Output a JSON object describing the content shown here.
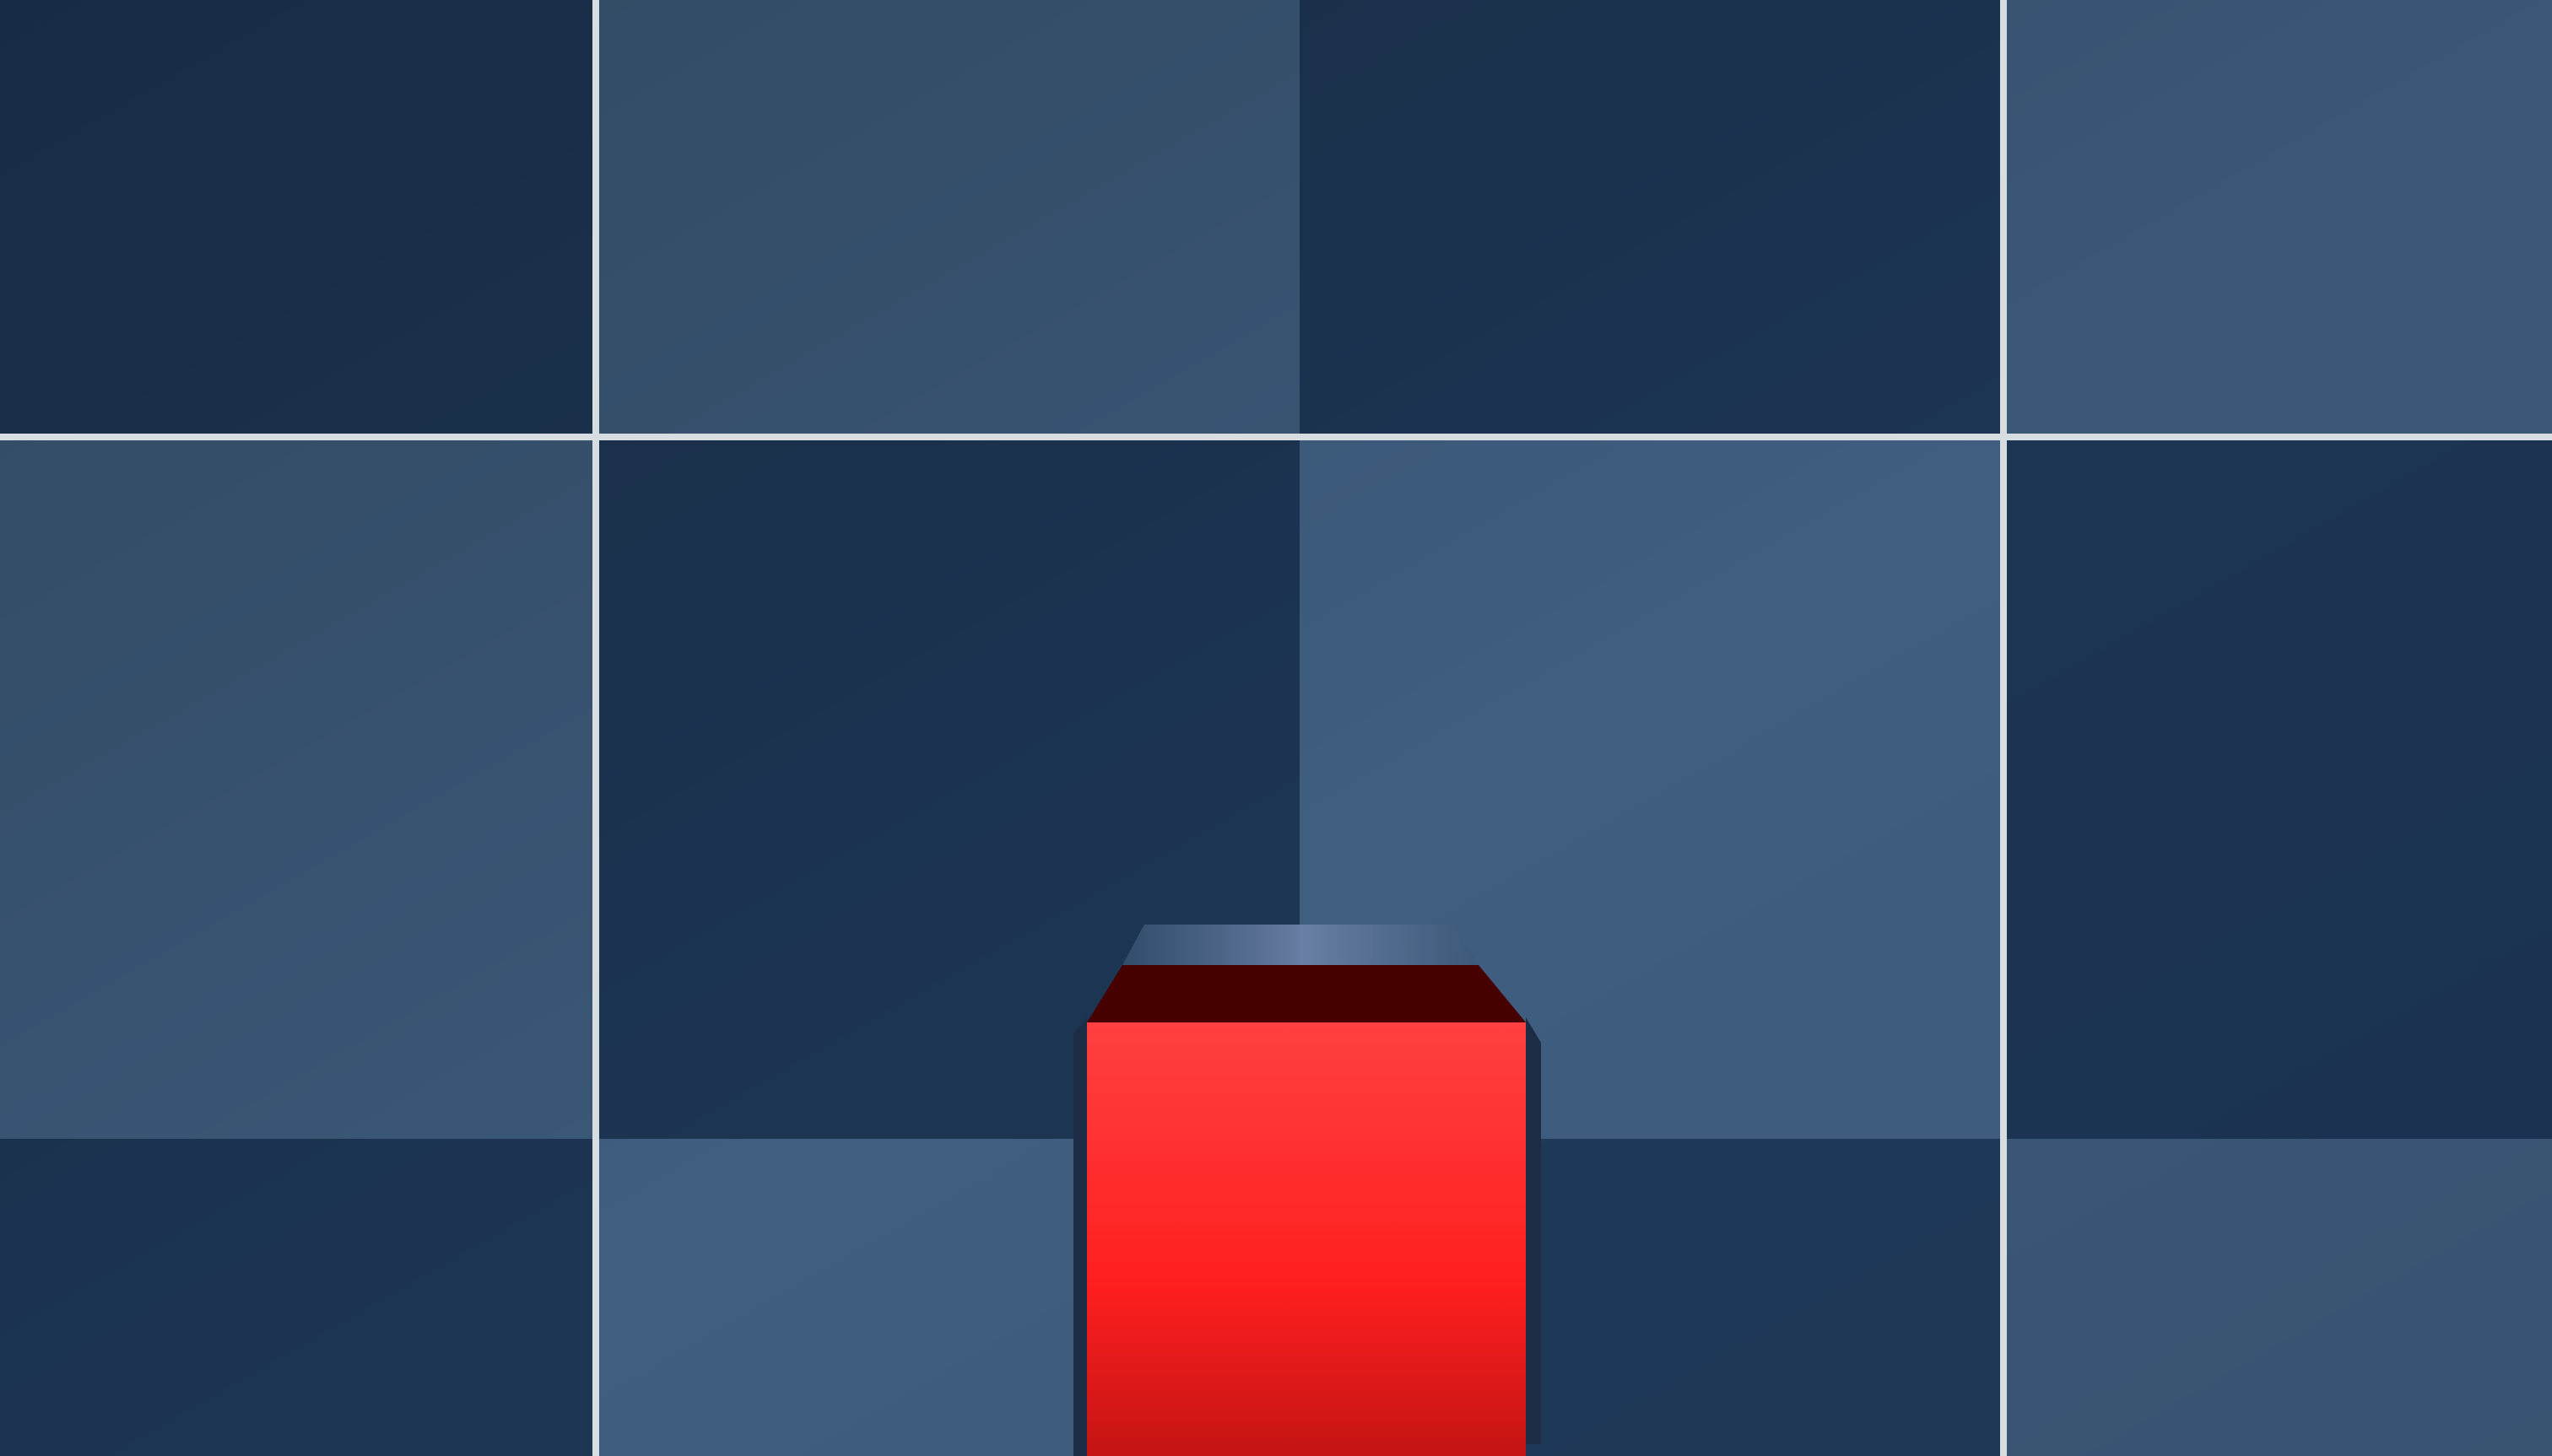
{
  "board": {
    "colors": {
      "dark_tile": "#1c3553",
      "light_tile": "#3b5877",
      "grid_line": "#d8dde2",
      "background": "#172a42"
    },
    "pattern": "checkerboard"
  },
  "player_cube": {
    "colors": {
      "front_top": "#ff4040",
      "front_mid": "#ff1f1f",
      "front_bottom": "#c41414",
      "top_face": "#470000",
      "top_shadow": "#5a6f92",
      "side_shadow": "#1b2c44"
    }
  }
}
